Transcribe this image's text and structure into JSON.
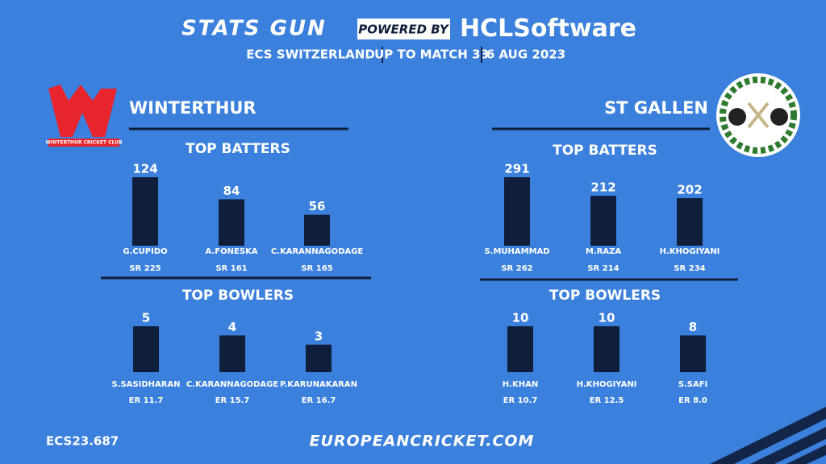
{
  "header": {
    "brand": "STATS GUN",
    "powered": "POWERED BY",
    "sponsor_a": "HCL",
    "sponsor_b": "Software",
    "subtitle": [
      "ECS SWITZERLAND",
      "UP TO MATCH 33",
      "6 AUG 2023"
    ]
  },
  "teams": [
    {
      "name": "WINTERTHUR",
      "logo_text": "WINTERTHUR CRICKET CLUB"
    },
    {
      "name": "ST GALLEN"
    }
  ],
  "chart_data": [
    {
      "type": "bar",
      "title": "TOP BATTERS",
      "color": "#0f1e3a",
      "categories": [
        "G.CUPIDO",
        "A.FONESKA",
        "C.KARANNAGODAGE"
      ],
      "values": [
        124,
        84,
        56
      ],
      "sublabels": [
        "SR 225",
        "SR 161",
        "SR 165"
      ]
    },
    {
      "type": "bar",
      "title": "TOP BOWLERS",
      "color": "#0f1e3a",
      "categories": [
        "S.SASIDHARAN",
        "C.KARANNAGODAGE",
        "P.KARUNAKARAN"
      ],
      "values": [
        5,
        4,
        3
      ],
      "sublabels": [
        "ER 11.7",
        "ER 15.7",
        "ER 16.7"
      ]
    },
    {
      "type": "bar",
      "title": "TOP BATTERS",
      "color": "#0f1e3a",
      "categories": [
        "S.MUHAMMAD",
        "M.RAZA",
        "H.KHOGIYANI"
      ],
      "values": [
        291,
        212,
        202
      ],
      "sublabels": [
        "SR 262",
        "SR 214",
        "SR 234"
      ]
    },
    {
      "type": "bar",
      "title": "TOP BOWLERS",
      "color": "#0f1e3a",
      "categories": [
        "H.KHAN",
        "H.KHOGIYANI",
        "S.SAFI"
      ],
      "values": [
        10,
        10,
        8
      ],
      "sublabels": [
        "ER 10.7",
        "ER 12.5",
        "ER 8.0"
      ]
    }
  ],
  "footer": {
    "code": "ECS23.687",
    "site": "EUROPEANCRICKET.COM"
  }
}
